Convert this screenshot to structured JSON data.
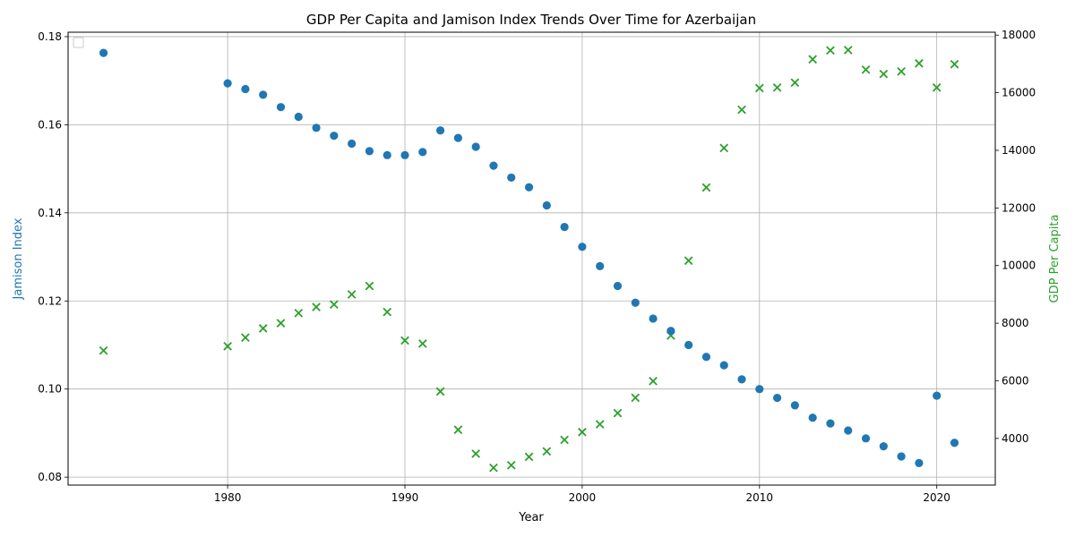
{
  "chart_data": {
    "type": "scatter",
    "title": "GDP Per Capita and Jamison Index Trends Over Time for Azerbaijan",
    "xlabel": "Year",
    "ylabel_left": "Jamison Index",
    "ylabel_right": "GDP Per Capita",
    "xlim": [
      1971,
      2023.3
    ],
    "ylim_left": [
      0.0782,
      0.181
    ],
    "ylim_right": [
      2380,
      18100
    ],
    "x_ticks": [
      1980,
      1990,
      2000,
      2010,
      2020
    ],
    "y_left_ticks": [
      0.08,
      0.1,
      0.12,
      0.14,
      0.16,
      0.18
    ],
    "y_left_tick_labels": [
      "0.08",
      "0.10",
      "0.12",
      "0.14",
      "0.16",
      "0.18"
    ],
    "y_right_ticks": [
      4000,
      6000,
      8000,
      10000,
      12000,
      14000,
      16000,
      18000
    ],
    "y_right_tick_labels": [
      "4000",
      "6000",
      "8000",
      "10000",
      "12000",
      "14000",
      "16000",
      "18000"
    ],
    "grid": true,
    "legend": "upper left (empty)",
    "colors": {
      "jamison": "#1f77b4",
      "gdp": "#2ca02c"
    },
    "series": [
      {
        "name": "Jamison Index",
        "axis": "left",
        "marker": "circle",
        "x": [
          1973,
          1980,
          1981,
          1982,
          1983,
          1984,
          1985,
          1986,
          1987,
          1988,
          1989,
          1990,
          1991,
          1992,
          1993,
          1994,
          1995,
          1996,
          1997,
          1998,
          1999,
          2000,
          2001,
          2002,
          2003,
          2004,
          2005,
          2006,
          2007,
          2008,
          2009,
          2010,
          2011,
          2012,
          2013,
          2014,
          2015,
          2016,
          2017,
          2018,
          2019,
          2020,
          2021
        ],
        "y": [
          0.1763,
          0.1694,
          0.1681,
          0.1668,
          0.164,
          0.1618,
          0.1593,
          0.1575,
          0.1557,
          0.154,
          0.1531,
          0.1531,
          0.1538,
          0.1587,
          0.157,
          0.155,
          0.1507,
          0.148,
          0.1458,
          0.1417,
          0.1368,
          0.1323,
          0.1279,
          0.1234,
          0.1196,
          0.116,
          0.1132,
          0.11,
          0.1073,
          0.1054,
          0.1022,
          0.1,
          0.098,
          0.0963,
          0.0935,
          0.0922,
          0.0906,
          0.0888,
          0.087,
          0.0847,
          0.0832,
          0.0985,
          0.0878
        ]
      },
      {
        "name": "GDP Per Capita",
        "axis": "right",
        "marker": "x",
        "x": [
          1973,
          1980,
          1981,
          1982,
          1983,
          1984,
          1985,
          1986,
          1987,
          1988,
          1989,
          1990,
          1991,
          1992,
          1993,
          1994,
          1995,
          1996,
          1997,
          1998,
          1999,
          2000,
          2001,
          2002,
          2003,
          2004,
          2005,
          2006,
          2007,
          2008,
          2009,
          2010,
          2011,
          2012,
          2013,
          2014,
          2015,
          2016,
          2017,
          2018,
          2019,
          2020,
          2021
        ],
        "y": [
          7050,
          7200,
          7500,
          7820,
          8000,
          8350,
          8560,
          8650,
          9000,
          9290,
          8390,
          7400,
          7290,
          5630,
          4300,
          3470,
          2980,
          3070,
          3360,
          3550,
          3950,
          4220,
          4490,
          4880,
          5410,
          5990,
          7570,
          10170,
          12710,
          14080,
          15410,
          16160,
          16180,
          16350,
          17160,
          17470,
          17480,
          16800,
          16650,
          16740,
          17020,
          16180,
          16990
        ]
      }
    ]
  }
}
